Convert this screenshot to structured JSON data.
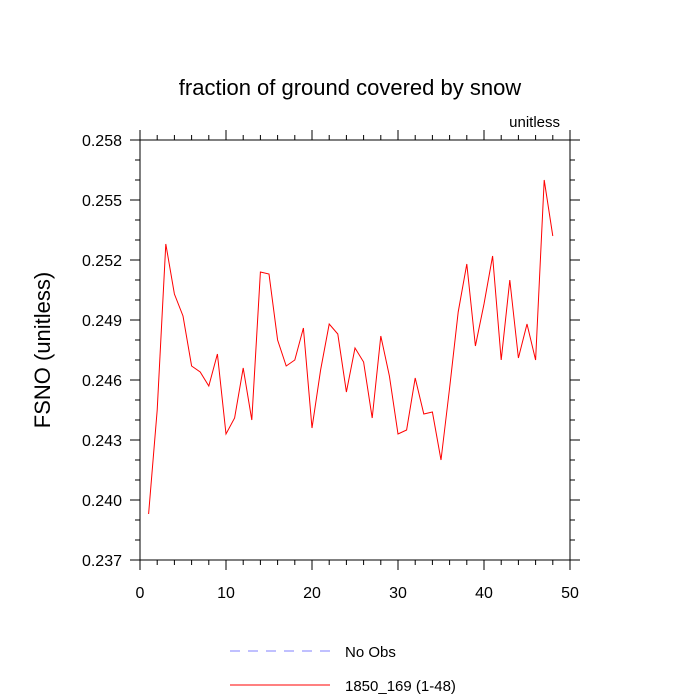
{
  "chart_data": {
    "type": "line",
    "title": "fraction of ground covered by snow",
    "units_label": "unitless",
    "ylabel": "FSNO  (unitless)",
    "xlabel": "",
    "xlim": [
      0,
      50
    ],
    "ylim": [
      0.237,
      0.258
    ],
    "xticks": [
      "0",
      "10",
      "20",
      "30",
      "40",
      "50"
    ],
    "yticks": [
      "0.237",
      "0.240",
      "0.243",
      "0.246",
      "0.249",
      "0.252",
      "0.255",
      "0.258"
    ],
    "grid": false,
    "legend": {
      "placement": "bottom-center",
      "entries": [
        {
          "label": "No Obs",
          "color": "#8080ff",
          "style": "dashed"
        },
        {
          "label": "1850_169 (1-48)",
          "color": "#ff0000",
          "style": "solid"
        }
      ]
    },
    "series": [
      {
        "name": "1850_169 (1-48)",
        "color": "#ff0000",
        "x": [
          1,
          2,
          3,
          4,
          5,
          6,
          7,
          8,
          9,
          10,
          11,
          12,
          13,
          14,
          15,
          16,
          17,
          18,
          19,
          20,
          21,
          22,
          23,
          24,
          25,
          26,
          27,
          28,
          29,
          30,
          31,
          32,
          33,
          34,
          35,
          36,
          37,
          38,
          39,
          40,
          41,
          42,
          43,
          44,
          45,
          46,
          47,
          48
        ],
        "values": [
          0.2393,
          0.2445,
          0.2528,
          0.2503,
          0.2492,
          0.2467,
          0.2464,
          0.2457,
          0.2473,
          0.2433,
          0.2441,
          0.2466,
          0.244,
          0.2514,
          0.2513,
          0.248,
          0.2467,
          0.247,
          0.2486,
          0.2436,
          0.2465,
          0.2488,
          0.2483,
          0.2454,
          0.2476,
          0.2469,
          0.2441,
          0.2482,
          0.2462,
          0.2433,
          0.2435,
          0.2461,
          0.2443,
          0.2444,
          0.242,
          0.2456,
          0.2494,
          0.2518,
          0.2477,
          0.2498,
          0.2522,
          0.247,
          0.251,
          0.2471,
          0.2488,
          0.247,
          0.256,
          0.2532
        ]
      }
    ]
  }
}
